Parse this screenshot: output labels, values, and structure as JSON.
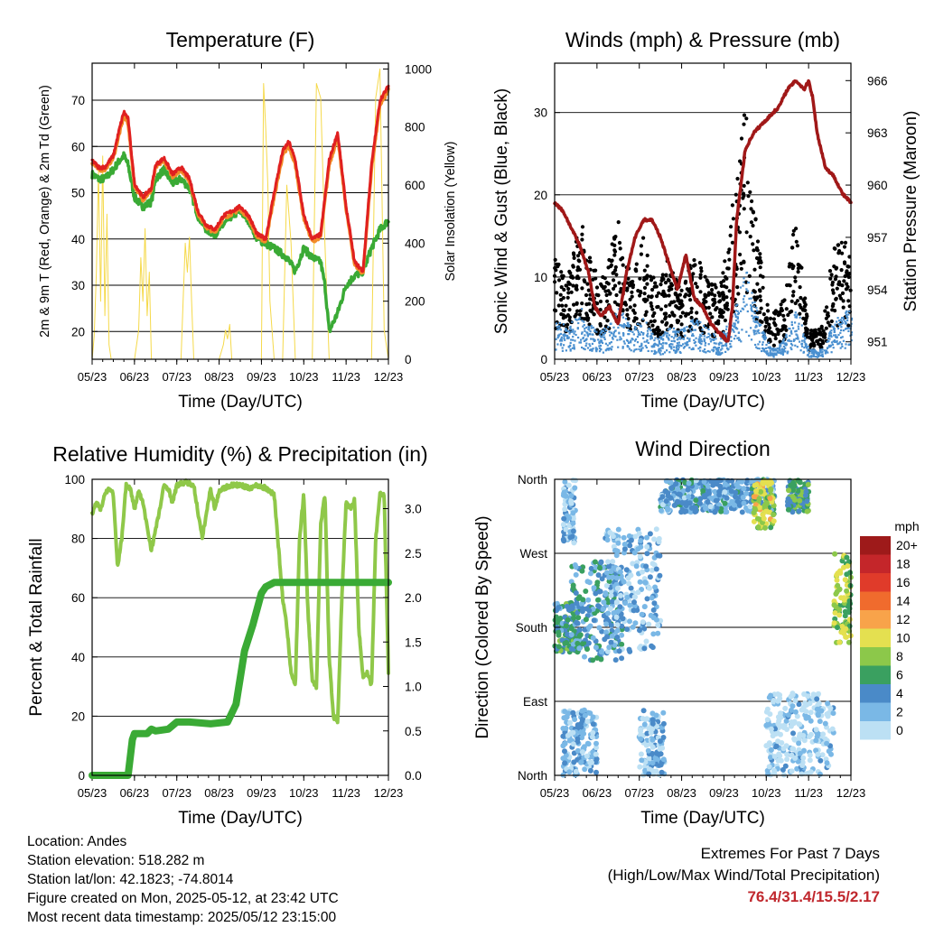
{
  "footer": {
    "location": "Location: Andes",
    "elevation": "Station elevation: 518.282 m",
    "latlon": "Station lat/lon: 42.1823; -74.8014",
    "created": "Figure created on Mon, 2025-05-12, at 23:42 UTC",
    "recent": "Most recent data timestamp: 2025/05/12 23:15:00",
    "extremes_title": "Extremes For Past 7 Days",
    "extremes_sub": "(High/Low/Max Wind/Total Precipitation)",
    "extremes_values": "76.4/31.4/15.5/2.17"
  },
  "colors": {
    "t2m": "#e02020",
    "t9m": "#f28c28",
    "td": "#3aaa35",
    "solar": "#f5d94a",
    "wind": "#4a90d0",
    "gust": "#000000",
    "pressure": "#a01818",
    "rh": "#8fc849",
    "precip": "#3aaa35"
  },
  "chart_data": [
    {
      "type": "line",
      "title": "Temperature (F)",
      "xlabel": "Time (Day/UTC)",
      "ylabel": "2m & 9m T (Red, Orange) & 2m Td (Green)",
      "ylabel_right": "Solar Insolation (Yellow)",
      "xticks": [
        "05/23",
        "06/23",
        "07/23",
        "08/23",
        "09/23",
        "10/23",
        "11/23",
        "12/23"
      ],
      "ylim": [
        14,
        78
      ],
      "yticks": [
        20,
        30,
        40,
        50,
        60,
        70
      ],
      "ylim_right": [
        0,
        1020
      ],
      "yticks_right": [
        0,
        200,
        400,
        600,
        800,
        1000
      ],
      "series": [
        {
          "key": "t2m",
          "x": [
            0,
            0.15,
            0.3,
            0.5,
            0.65,
            0.75,
            0.85,
            1.0,
            1.2,
            1.4,
            1.5,
            1.7,
            1.9,
            2.1,
            2.3,
            2.5,
            2.7,
            2.9,
            3.1,
            3.3,
            3.5,
            3.7,
            3.9,
            4.1,
            4.3,
            4.5,
            4.65,
            4.8,
            5.0,
            5.2,
            5.4,
            5.6,
            5.8,
            6.0,
            6.2,
            6.4,
            6.6,
            6.8,
            7.0
          ],
          "y": [
            57,
            55.5,
            55.5,
            58,
            64,
            67.5,
            66,
            52,
            49,
            51,
            56,
            57.5,
            54,
            55.5,
            53,
            46,
            43,
            42,
            45,
            46,
            47,
            45,
            41,
            40,
            50,
            59,
            61,
            57,
            45,
            40,
            41,
            57,
            63,
            47,
            35,
            33,
            56,
            70,
            73
          ]
        },
        {
          "key": "t9m",
          "x": [
            0,
            0.15,
            0.3,
            0.5,
            0.65,
            0.75,
            0.85,
            1.0,
            1.2,
            1.4,
            1.5,
            1.7,
            1.9,
            2.1,
            2.3,
            2.5,
            2.7,
            2.9,
            3.1,
            3.3,
            3.5,
            3.7,
            3.9,
            4.1,
            4.3,
            4.5,
            4.65,
            4.8,
            5.0,
            5.2,
            5.4,
            5.6,
            5.8,
            6.0,
            6.2,
            6.4,
            6.6,
            6.8,
            7.0
          ],
          "y": [
            56.5,
            55,
            55,
            57.5,
            63,
            66.5,
            65,
            51.5,
            48.5,
            50.5,
            55.5,
            57,
            53.5,
            55,
            52.5,
            45.5,
            42.5,
            41.5,
            44.5,
            45.5,
            46.5,
            44.5,
            40.5,
            39.5,
            49,
            58,
            60,
            56,
            44.5,
            39.5,
            40.5,
            56,
            62,
            46.5,
            34.5,
            32.5,
            55,
            69,
            72
          ]
        },
        {
          "key": "td",
          "x": [
            0,
            0.15,
            0.3,
            0.5,
            0.65,
            0.75,
            0.85,
            1.0,
            1.2,
            1.4,
            1.5,
            1.7,
            1.9,
            2.1,
            2.3,
            2.5,
            2.7,
            2.9,
            3.1,
            3.3,
            3.5,
            3.7,
            3.9,
            4.1,
            4.3,
            4.45,
            4.6,
            4.8,
            5.0,
            5.2,
            5.4,
            5.5,
            5.6,
            5.8,
            6.0,
            6.2,
            6.4,
            6.6,
            6.8,
            7.0
          ],
          "y": [
            54,
            53,
            53,
            55,
            57,
            58,
            56,
            49,
            47,
            48,
            53,
            55,
            52,
            53,
            51,
            45,
            42,
            41,
            43,
            45,
            46,
            44,
            40,
            39,
            38,
            37,
            36,
            33,
            38,
            36,
            35,
            30,
            20,
            24,
            30,
            32,
            33,
            38,
            42,
            44
          ]
        },
        {
          "key": "solar",
          "x": [
            0,
            0.05,
            0.1,
            0.15,
            0.2,
            0.25,
            0.3,
            0.35,
            0.4,
            0.45,
            0.5,
            0.6,
            0.7,
            0.8,
            0.9,
            1.0,
            1.1,
            1.15,
            1.2,
            1.25,
            1.3,
            1.35,
            1.4,
            1.5,
            1.6,
            1.7,
            1.8,
            1.9,
            2.0,
            2.1,
            2.15,
            2.2,
            2.25,
            2.3,
            2.35,
            2.4,
            2.5,
            2.6,
            2.7,
            2.8,
            2.9,
            3.0,
            3.1,
            3.15,
            3.2,
            3.25,
            3.3,
            3.4,
            3.5,
            3.6,
            3.7,
            3.8,
            3.9,
            4.0,
            4.05,
            4.1,
            4.15,
            4.2,
            4.3,
            4.4,
            4.5,
            4.6,
            4.7,
            4.8,
            4.9,
            5.0,
            5.1,
            5.2,
            5.3,
            5.4,
            5.5,
            5.6,
            5.7,
            5.8,
            5.9,
            6.0,
            6.1,
            6.2,
            6.3,
            6.4,
            6.5,
            6.6,
            6.7,
            6.8,
            6.9,
            7.0
          ],
          "y": [
            0,
            80,
            300,
            650,
            200,
            700,
            150,
            500,
            50,
            0,
            0,
            0,
            0,
            0,
            0,
            0,
            100,
            350,
            200,
            450,
            150,
            300,
            0,
            0,
            0,
            0,
            0,
            0,
            0,
            0,
            200,
            400,
            300,
            420,
            200,
            0,
            0,
            0,
            0,
            0,
            0,
            0,
            50,
            100,
            70,
            120,
            0,
            0,
            0,
            0,
            0,
            0,
            0,
            0,
            950,
            800,
            600,
            200,
            0,
            0,
            0,
            600,
            400,
            0,
            0,
            0,
            0,
            0,
            950,
            900,
            400,
            0,
            0,
            0,
            0,
            0,
            0,
            0,
            0,
            0,
            0,
            0,
            900,
            1000,
            100,
            0
          ]
        }
      ]
    },
    {
      "type": "scatter",
      "title": "Winds (mph) & Pressure (mb)",
      "xlabel": "Time (Day/UTC)",
      "ylabel": "Sonic Wind & Gust (Blue, Black)",
      "ylabel_right": "Station Pressure (Maroon)",
      "xticks": [
        "05/23",
        "06/23",
        "07/23",
        "08/23",
        "09/23",
        "10/23",
        "11/23",
        "12/23"
      ],
      "ylim": [
        0,
        36
      ],
      "yticks": [
        0,
        10,
        20,
        30
      ],
      "ylim_right": [
        950,
        967
      ],
      "yticks_right": [
        951,
        954,
        957,
        960,
        963,
        966
      ],
      "series": [
        {
          "key": "pressure",
          "x": [
            0,
            0.2,
            0.4,
            0.6,
            0.8,
            0.95,
            1.1,
            1.3,
            1.5,
            1.7,
            1.9,
            2.1,
            2.3,
            2.5,
            2.7,
            2.9,
            3.0,
            3.1,
            3.3,
            3.5,
            3.7,
            3.9,
            4.1,
            4.2,
            4.3,
            4.5,
            4.7,
            4.9,
            5.1,
            5.3,
            5.5,
            5.7,
            5.9,
            6.0,
            6.1,
            6.2,
            6.3,
            6.4,
            6.6,
            6.8,
            7.0
          ],
          "y": [
            959,
            958.5,
            957.5,
            956.5,
            955,
            953,
            952.5,
            953,
            952,
            955,
            957,
            958,
            958,
            957,
            955.5,
            954,
            955,
            956,
            953.5,
            953,
            952,
            951.5,
            951,
            953,
            958,
            962,
            963,
            963.5,
            964,
            964.5,
            965.5,
            966,
            965.5,
            966,
            965,
            963,
            962,
            961,
            960.5,
            959.5,
            959
          ]
        },
        {
          "key": "gust_env",
          "x": [
            0,
            0.3,
            0.6,
            0.9,
            1.2,
            1.5,
            1.8,
            2.1,
            2.4,
            2.7,
            3.0,
            3.3,
            3.6,
            3.9,
            4.2,
            4.5,
            4.8,
            5.1,
            5.4,
            5.7,
            6.0,
            6.3,
            6.6,
            6.9,
            7.0
          ],
          "y": [
            10,
            8,
            14,
            9,
            8,
            14,
            8,
            12,
            7,
            10,
            7,
            11,
            8,
            7,
            15,
            25,
            12,
            4,
            6,
            14,
            3,
            3,
            11,
            12,
            10
          ]
        },
        {
          "key": "wind_env",
          "x": [
            0,
            0.3,
            0.6,
            0.9,
            1.2,
            1.5,
            1.8,
            2.1,
            2.4,
            2.7,
            3.0,
            3.3,
            3.6,
            3.9,
            4.2,
            4.5,
            4.8,
            5.1,
            5.4,
            5.7,
            6.0,
            6.3,
            6.6,
            6.9,
            7.0
          ],
          "y": [
            4,
            3,
            5,
            3,
            3,
            5,
            3,
            4,
            2,
            3,
            3,
            4,
            3,
            2,
            5,
            9,
            4,
            1,
            2,
            5,
            1,
            1,
            4,
            5,
            4
          ]
        }
      ]
    },
    {
      "type": "line",
      "title": "Relative Humidity (%) & Precipitation (in)",
      "xlabel": "Time (Day/UTC)",
      "ylabel": "Percent & Total Rainfall",
      "xticks": [
        "05/23",
        "06/23",
        "07/23",
        "08/23",
        "09/23",
        "10/23",
        "11/23",
        "12/23"
      ],
      "ylim": [
        0,
        100
      ],
      "yticks": [
        0,
        20,
        40,
        60,
        80,
        100
      ],
      "ylim_right": [
        0,
        3.33
      ],
      "yticks_right": [
        "0.0",
        "0.5",
        "1.0",
        "1.5",
        "2.0",
        "2.5",
        "3.0"
      ],
      "series": [
        {
          "key": "rh",
          "x": [
            0,
            0.1,
            0.2,
            0.3,
            0.4,
            0.5,
            0.6,
            0.7,
            0.8,
            0.9,
            1.0,
            1.1,
            1.2,
            1.4,
            1.6,
            1.7,
            1.8,
            1.9,
            2.0,
            2.2,
            2.4,
            2.6,
            2.8,
            2.9,
            3.0,
            3.1,
            3.3,
            3.5,
            3.7,
            3.9,
            4.1,
            4.3,
            4.5,
            4.6,
            4.7,
            4.8,
            4.9,
            5.0,
            5.1,
            5.2,
            5.3,
            5.4,
            5.5,
            5.6,
            5.7,
            5.8,
            5.9,
            6.0,
            6.1,
            6.2,
            6.3,
            6.4,
            6.5,
            6.6,
            6.7,
            6.8,
            6.9,
            7.0
          ],
          "y": [
            88,
            92,
            90,
            95,
            97,
            95,
            70,
            80,
            98,
            97,
            90,
            96,
            92,
            76,
            90,
            98,
            97,
            92,
            98,
            99,
            98,
            80,
            97,
            90,
            96,
            97,
            98,
            98,
            97,
            98,
            97,
            95,
            60,
            50,
            35,
            30,
            80,
            95,
            55,
            32,
            30,
            85,
            95,
            40,
            20,
            18,
            60,
            92,
            90,
            93,
            50,
            33,
            35,
            30,
            80,
            95,
            95,
            35
          ]
        },
        {
          "key": "precip",
          "x": [
            0,
            0.85,
            0.95,
            1.0,
            1.1,
            1.3,
            1.4,
            1.5,
            1.8,
            2.0,
            2.3,
            2.8,
            3.2,
            3.4,
            3.5,
            3.6,
            3.8,
            4.0,
            4.1,
            4.3,
            4.5,
            5.0,
            6.0,
            7.0
          ],
          "y": [
            0,
            0,
            0.4,
            0.47,
            0.47,
            0.47,
            0.52,
            0.5,
            0.52,
            0.6,
            0.6,
            0.58,
            0.6,
            0.8,
            1.1,
            1.4,
            1.7,
            2.05,
            2.12,
            2.17,
            2.17,
            2.17,
            2.17,
            2.17
          ]
        }
      ]
    },
    {
      "type": "scatter",
      "title": "Wind Direction",
      "xlabel": "Time (Day/UTC)",
      "ylabel": "Direction (Colored By Speed)",
      "xticks": [
        "05/23",
        "06/23",
        "07/23",
        "08/23",
        "09/23",
        "10/23",
        "11/23",
        "12/23"
      ],
      "yticks": [
        "North",
        "East",
        "South",
        "West",
        "North"
      ],
      "ylim": [
        0,
        360
      ],
      "legend": {
        "title": "mph",
        "labels": [
          "20+",
          "18",
          "16",
          "14",
          "12",
          "10",
          "8",
          "6",
          "4",
          "2",
          "0"
        ],
        "colors": [
          "#9e1a1a",
          "#c4262a",
          "#e03b2a",
          "#f06b2d",
          "#f8a34a",
          "#e4e050",
          "#8cc84a",
          "#3aa060",
          "#4a8ac8",
          "#7ab8e6",
          "#bce0f4"
        ]
      },
      "clusters": [
        {
          "x": [
            0,
            0.6
          ],
          "y": [
            150,
            210
          ],
          "speed": 5
        },
        {
          "x": [
            0.4,
            1.6
          ],
          "y": [
            140,
            260
          ],
          "speed": 4
        },
        {
          "x": [
            0.2,
            0.5
          ],
          "y": [
            280,
            360
          ],
          "speed": 2
        },
        {
          "x": [
            1.2,
            2.5
          ],
          "y": [
            150,
            300
          ],
          "speed": 2
        },
        {
          "x": [
            2.5,
            5.2
          ],
          "y": [
            320,
            360
          ],
          "speed": 3
        },
        {
          "x": [
            4.7,
            5.2
          ],
          "y": [
            300,
            360
          ],
          "speed": 9
        },
        {
          "x": [
            5.5,
            6.0
          ],
          "y": [
            320,
            360
          ],
          "speed": 6
        },
        {
          "x": [
            5.0,
            6.6
          ],
          "y": [
            0,
            100
          ],
          "speed": 1
        },
        {
          "x": [
            6.6,
            7.0
          ],
          "y": [
            160,
            270
          ],
          "speed": 8
        },
        {
          "x": [
            0.2,
            1.0
          ],
          "y": [
            0,
            80
          ],
          "speed": 2
        },
        {
          "x": [
            2.0,
            2.6
          ],
          "y": [
            0,
            80
          ],
          "speed": 2
        }
      ]
    }
  ]
}
